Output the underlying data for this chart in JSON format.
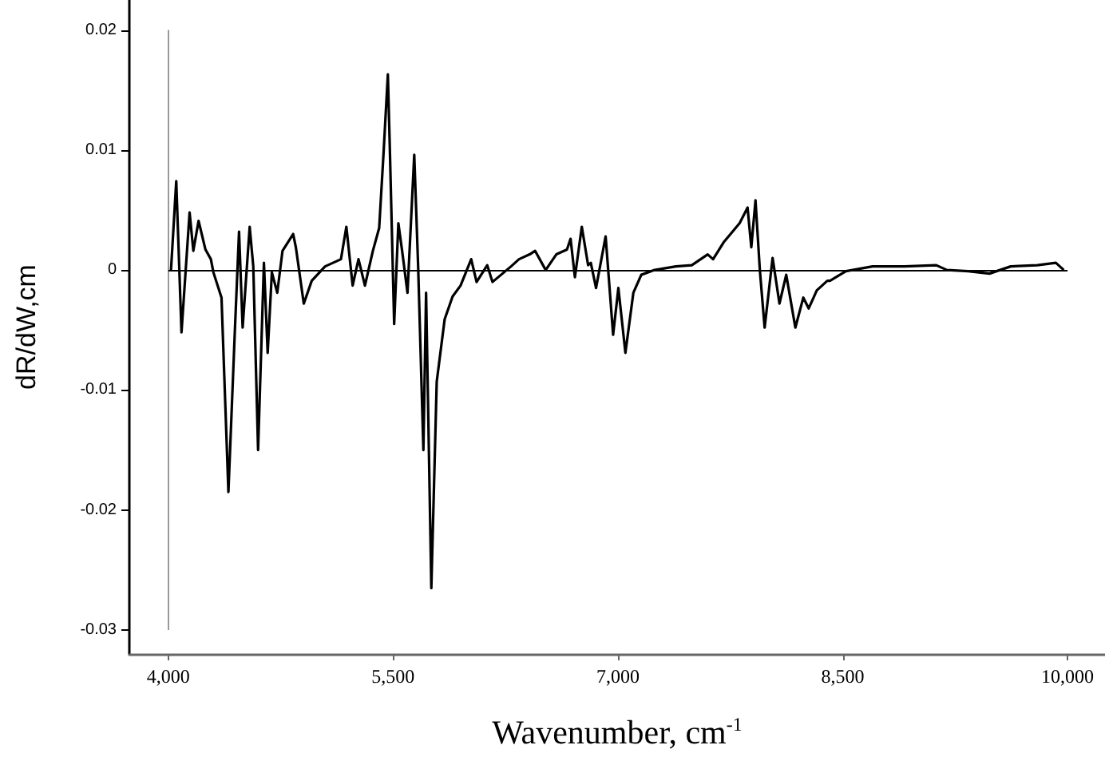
{
  "chart_data": {
    "type": "line",
    "xlabel": "Wavenumber, cm$^{-1}$",
    "ylabel": "dR/dW,cm",
    "xlim": [
      3740,
      10250
    ],
    "ylim": [
      -0.032,
      0.0225
    ],
    "xticks": [
      {
        "value": 4000,
        "label": "4,000"
      },
      {
        "value": 5500,
        "label": "5,500"
      },
      {
        "value": 7000,
        "label": "7,000"
      },
      {
        "value": 8500,
        "label": "8,500"
      },
      {
        "value": 10000,
        "label": "10,000"
      }
    ],
    "yticks": [
      -0.03,
      -0.02,
      -0.01,
      0,
      0.01,
      0.02
    ],
    "grid": false,
    "marker": "none",
    "line_style": "solid",
    "ref_lines": [
      {
        "axis": "x",
        "value": 4000,
        "color": "#999999"
      },
      {
        "axis": "y",
        "value": 0,
        "color": "#000000"
      }
    ],
    "series": [
      {
        "color": "#000000",
        "x": [
          4018,
          4053,
          4088,
          4142,
          4167,
          4202,
          4248,
          4284,
          4301,
          4355,
          4401,
          4443,
          4472,
          4496,
          4543,
          4567,
          4599,
          4638,
          4663,
          4691,
          4727,
          4762,
          4833,
          4851,
          4904,
          4957,
          5046,
          5099,
          5152,
          5188,
          5230,
          5269,
          5312,
          5365,
          5407,
          5436,
          5465,
          5479,
          5507,
          5535,
          5560,
          5596,
          5641,
          5667,
          5702,
          5720,
          5755,
          5791,
          5844,
          5897,
          5950,
          6021,
          6057,
          6128,
          6163,
          6287,
          6340,
          6411,
          6447,
          6518,
          6589,
          6660,
          6684,
          6713,
          6759,
          6801,
          6819,
          6854,
          6918,
          6968,
          7003,
          7050,
          7103,
          7156,
          7245,
          7387,
          7493,
          7599,
          7635,
          7705,
          7812,
          7865,
          7890,
          7918,
          7947,
          7979,
          8032,
          8078,
          8123,
          8184,
          8237,
          8273,
          8327,
          8397,
          8415,
          8521,
          8699,
          8912,
          9124,
          9195,
          9337,
          9479,
          9621,
          9798,
          9922,
          9975
        ],
        "values": [
          0,
          0.0074,
          -0.0052,
          0.0048,
          0.0016,
          0.0041,
          0.0017,
          0.0009,
          -0.0002,
          -0.0023,
          -0.0185,
          -0.0054,
          0.0032,
          -0.0048,
          0.0036,
          0.0003,
          -0.015,
          0.0006,
          -0.0069,
          -0.0002,
          -0.0019,
          0.0016,
          0.003,
          0.0019,
          -0.0028,
          -0.0009,
          0.0003,
          0.0006,
          0.0009,
          0.0036,
          -0.0013,
          0.0009,
          -0.0013,
          0.0016,
          0.0035,
          0.0097,
          0.0163,
          0.0097,
          -0.0045,
          0.0039,
          0.0016,
          -0.0019,
          0.0096,
          0.0003,
          -0.015,
          -0.0019,
          -0.0265,
          -0.0093,
          -0.0041,
          -0.0022,
          -0.0013,
          0.0009,
          -0.001,
          0.0004,
          -0.001,
          0.0003,
          0.0009,
          0.0013,
          0.0016,
          0,
          0.0013,
          0.0017,
          0.0026,
          -0.0006,
          0.0036,
          0.0004,
          0.0006,
          -0.0015,
          0.0028,
          -0.0054,
          -0.0015,
          -0.0069,
          -0.0019,
          -0.0004,
          0,
          0.0003,
          0.0004,
          0.0013,
          0.0009,
          0.0023,
          0.0039,
          0.0052,
          0.0019,
          0.0058,
          0,
          -0.0048,
          0.001,
          -0.0028,
          -0.0004,
          -0.0048,
          -0.0023,
          -0.0032,
          -0.0017,
          -0.0009,
          -0.0009,
          -0.0001,
          0.0003,
          0.0003,
          0.0004,
          0,
          -0.0001,
          -0.0003,
          0.0003,
          0.0004,
          0.0006,
          0
        ]
      }
    ]
  }
}
